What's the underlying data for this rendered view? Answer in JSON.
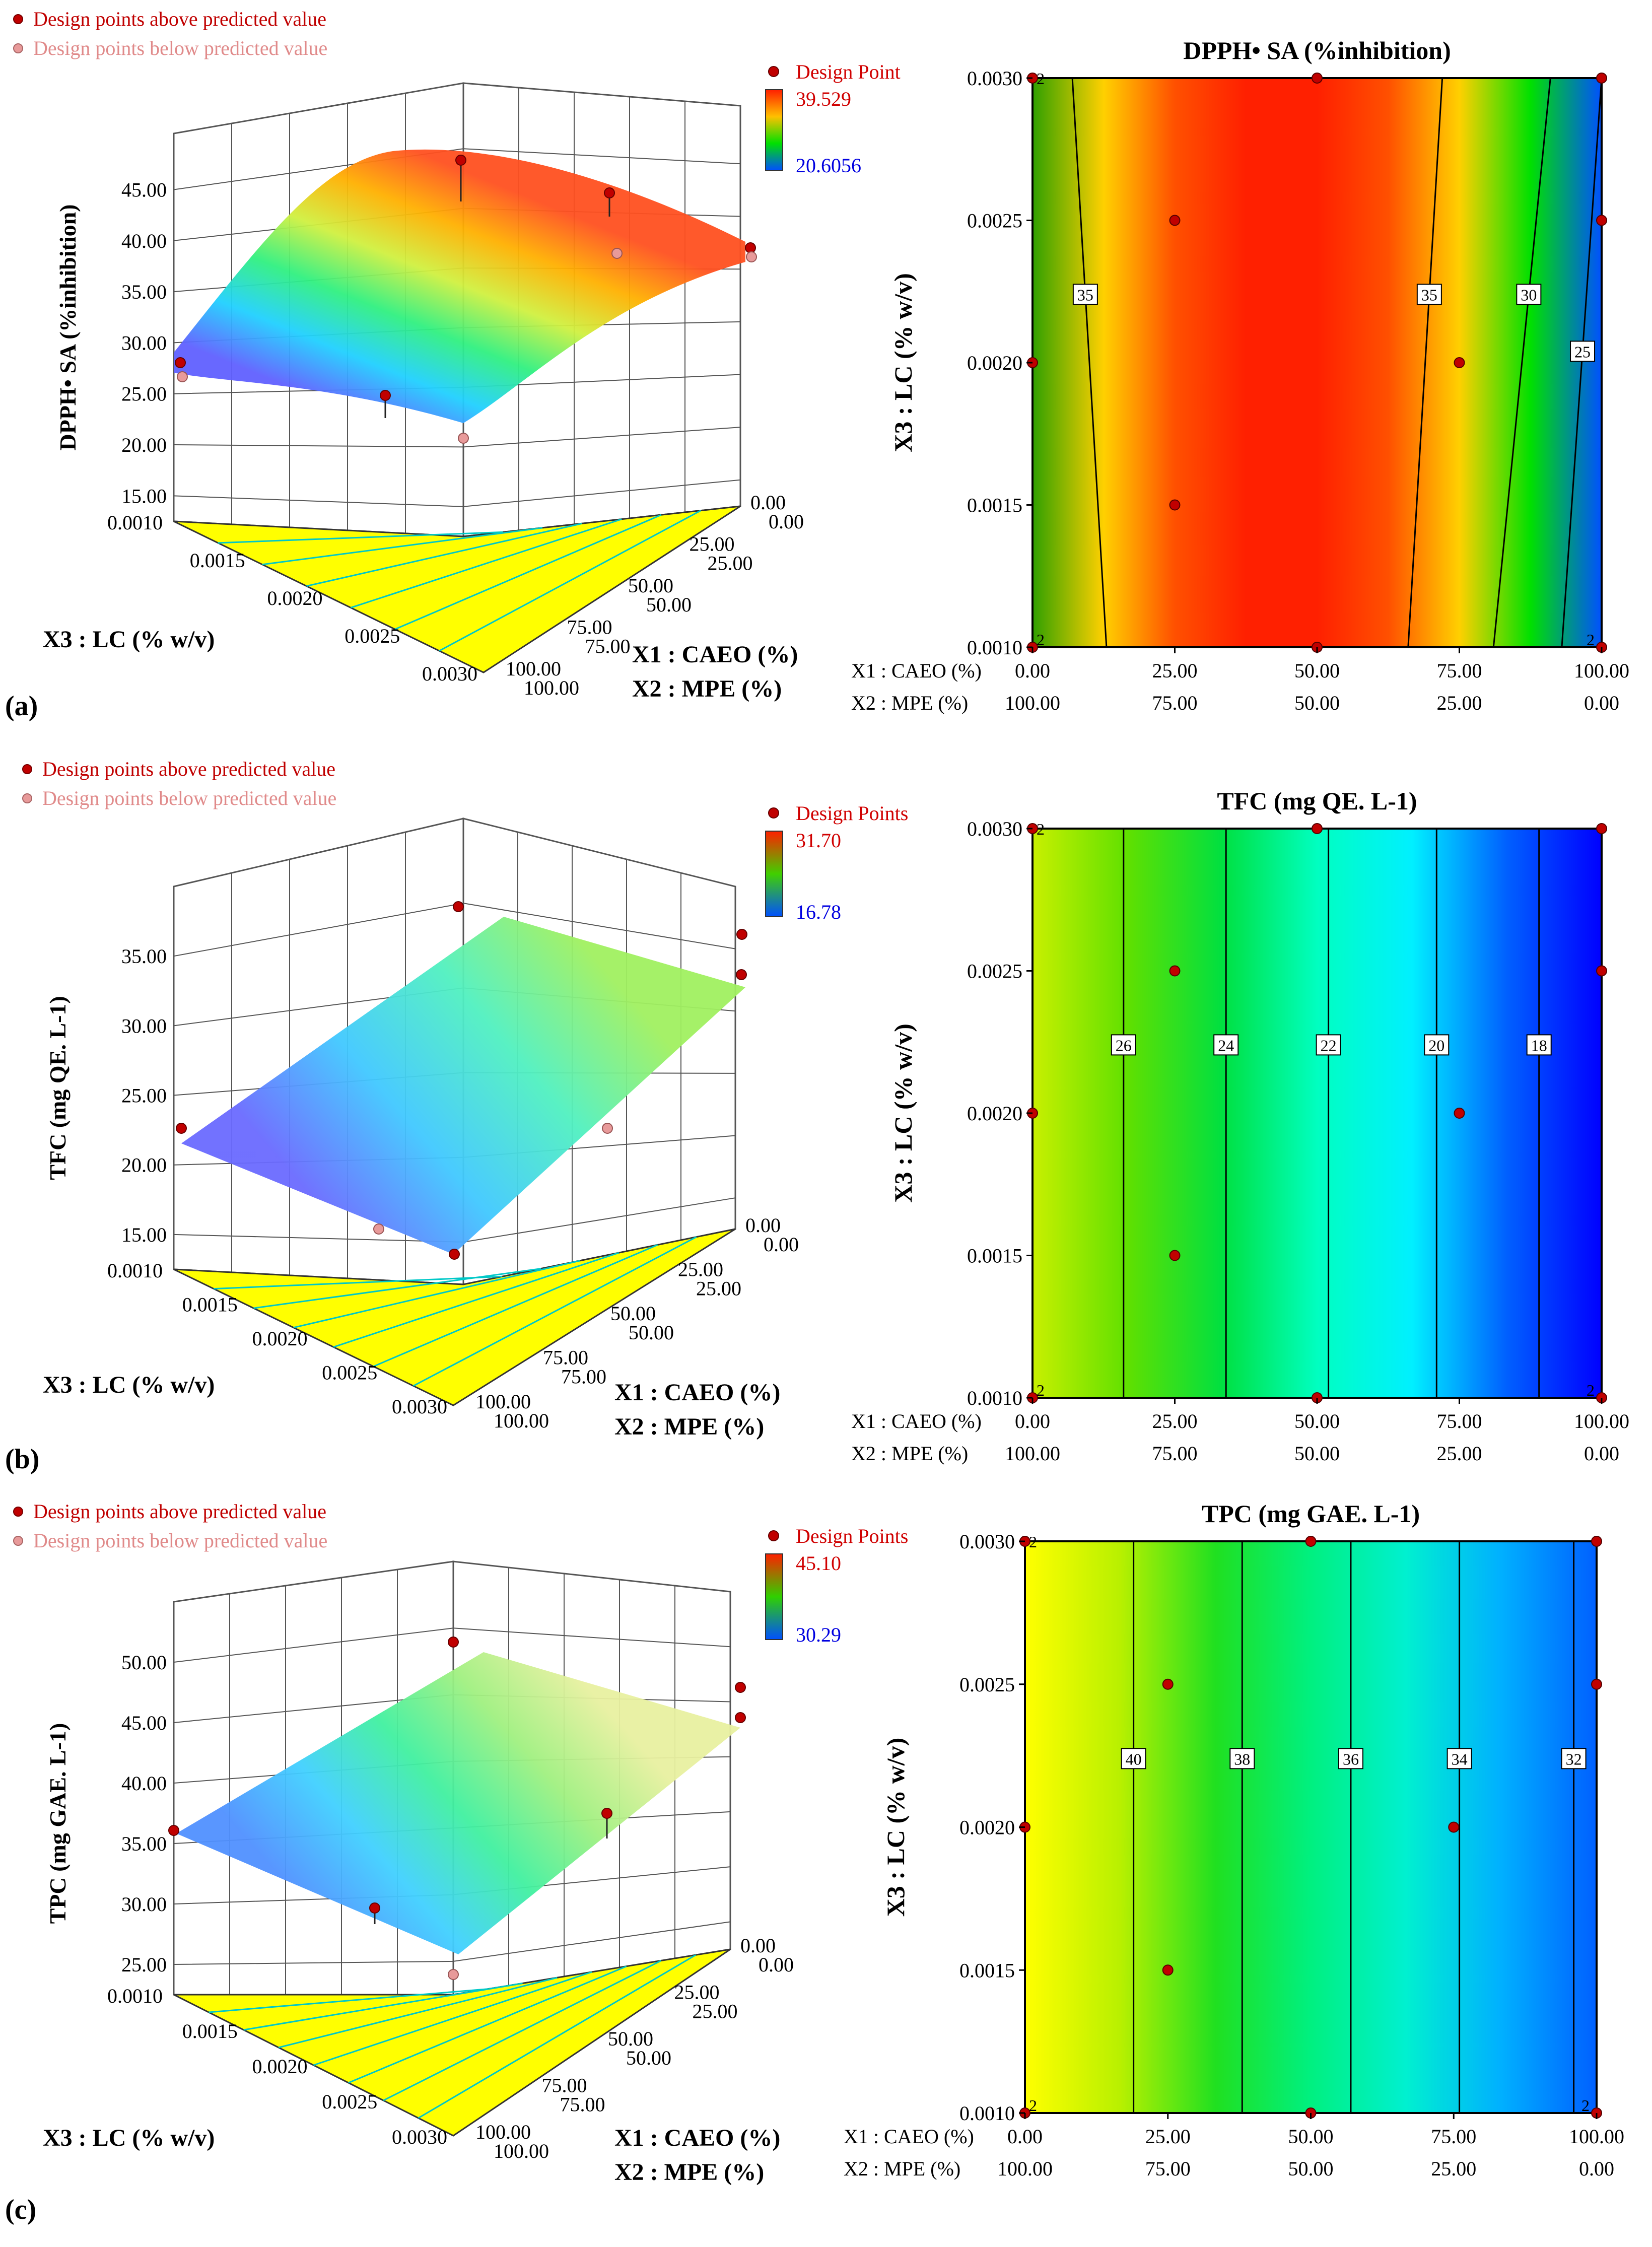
{
  "panel_letters": [
    "(a)",
    "(b)",
    "(c)"
  ],
  "legend": {
    "above": "Design points above predicted value",
    "below": "Design points below predicted value"
  },
  "colors": {
    "design_above": "#c00000",
    "design_below": "#e89a9a",
    "legend_above_text": "#c00000",
    "legend_below_text": "#e08a8a",
    "scale_high_text": "#d00000",
    "scale_low_text": "#0000e0",
    "floor_yellow": "#ffff00",
    "floor_line": "#00c8c8"
  },
  "contour_ramp": [
    "#ffff00",
    "#c8f000",
    "#00e000",
    "#00f0a0",
    "#00ffff",
    "#0090ff",
    "#0000ff"
  ],
  "dpph_ramp": [
    "#30a000",
    "#ffd000",
    "#ff5000",
    "#ff2000",
    "#ff2000",
    "#ff5000",
    "#ffd000",
    "#00e000",
    "#0050ff"
  ],
  "chart_data": [
    {
      "id": "a",
      "type": "surface3d",
      "title": "",
      "zlabel": "DPPH• SA (%inhibition)",
      "zticks": [
        "15.00",
        "20.00",
        "25.00",
        "30.00",
        "35.00",
        "40.00",
        "45.00"
      ],
      "x3label": "X3 : LC (% w/v)",
      "x3ticks": [
        "0.0010",
        "0.0015",
        "0.0020",
        "0.0025",
        "0.0030"
      ],
      "x1label": "X1 : CAEO (%)",
      "x2label": "X2 : MPE (%)",
      "x1ticks": [
        "0.00",
        "25.00",
        "50.00",
        "75.00",
        "100.00"
      ],
      "x2ticks": [
        "100.00",
        "75.00",
        "50.00",
        "25.00",
        "0.00"
      ],
      "scale": {
        "label": "Design Point",
        "high": "39.529",
        "low": "20.6056"
      }
    },
    {
      "id": "a-contour",
      "type": "contour",
      "title": "DPPH• SA (%inhibition)",
      "ylabel": "X3 : LC (% w/v)",
      "yticks": [
        "0.0010",
        "0.0015",
        "0.0020",
        "0.0025",
        "0.0030"
      ],
      "x1caption": "X1 : CAEO (%)",
      "x2caption": "X2 : MPE (%)",
      "x1ticks": [
        "0.00",
        "25.00",
        "50.00",
        "75.00",
        "100.00"
      ],
      "x2ticks": [
        "100.00",
        "75.00",
        "50.00",
        "25.00",
        "0.00"
      ],
      "contour_lines": [
        {
          "label": "35",
          "bottom": 13,
          "top": 7
        },
        {
          "label": "35",
          "bottom": 66,
          "top": 72
        },
        {
          "label": "30",
          "bottom": 81,
          "top": 91
        },
        {
          "label": "25",
          "bottom": 93,
          "top": 100
        }
      ],
      "points": [
        {
          "x": 0,
          "y": 0.003,
          "count": "2"
        },
        {
          "x": 50,
          "y": 0.003
        },
        {
          "x": 100,
          "y": 0.003
        },
        {
          "x": 25,
          "y": 0.0025
        },
        {
          "x": 100,
          "y": 0.0025
        },
        {
          "x": 0,
          "y": 0.002
        },
        {
          "x": 75,
          "y": 0.002
        },
        {
          "x": 25,
          "y": 0.0015
        },
        {
          "x": 0,
          "y": 0.001,
          "count": "2"
        },
        {
          "x": 50,
          "y": 0.001
        },
        {
          "x": 100,
          "y": 0.001,
          "count": "2"
        }
      ]
    },
    {
      "id": "b",
      "type": "surface3d",
      "zlabel": "TFC (mg QE. L-1)",
      "zticks": [
        "15.00",
        "20.00",
        "25.00",
        "30.00",
        "35.00"
      ],
      "x3label": "X3 : LC (% w/v)",
      "x3ticks": [
        "0.0010",
        "0.0015",
        "0.0020",
        "0.0025",
        "0.0030"
      ],
      "x1label": "X1 : CAEO (%)",
      "x2label": "X2 : MPE (%)",
      "x1ticks": [
        "0.00",
        "25.00",
        "50.00",
        "75.00",
        "100.00"
      ],
      "x2ticks": [
        "100.00",
        "75.00",
        "50.00",
        "25.00",
        "0.00"
      ],
      "scale": {
        "label": "Design Points",
        "high": "31.70",
        "low": "16.78"
      }
    },
    {
      "id": "b-contour",
      "type": "contour",
      "title": "TFC (mg QE. L-1)",
      "ylabel": "X3 : LC (% w/v)",
      "yticks": [
        "0.0010",
        "0.0015",
        "0.0020",
        "0.0025",
        "0.0030"
      ],
      "x1caption": "X1 : CAEO (%)",
      "x2caption": "X2 : MPE (%)",
      "x1ticks": [
        "0.00",
        "25.00",
        "50.00",
        "75.00",
        "100.00"
      ],
      "x2ticks": [
        "100.00",
        "75.00",
        "50.00",
        "25.00",
        "0.00"
      ],
      "contour_lines": [
        {
          "label": "26",
          "bottom": 16,
          "top": 16
        },
        {
          "label": "24",
          "bottom": 34,
          "top": 34
        },
        {
          "label": "22",
          "bottom": 52,
          "top": 52
        },
        {
          "label": "20",
          "bottom": 71,
          "top": 71
        },
        {
          "label": "18",
          "bottom": 89,
          "top": 89
        }
      ],
      "points": [
        {
          "x": 0,
          "y": 0.003,
          "count": "2"
        },
        {
          "x": 50,
          "y": 0.003
        },
        {
          "x": 100,
          "y": 0.003
        },
        {
          "x": 25,
          "y": 0.0025
        },
        {
          "x": 100,
          "y": 0.0025
        },
        {
          "x": 0,
          "y": 0.002
        },
        {
          "x": 75,
          "y": 0.002
        },
        {
          "x": 25,
          "y": 0.0015
        },
        {
          "x": 0,
          "y": 0.001,
          "count": "2"
        },
        {
          "x": 50,
          "y": 0.001
        },
        {
          "x": 100,
          "y": 0.001,
          "count": "2"
        }
      ]
    },
    {
      "id": "c",
      "type": "surface3d",
      "zlabel": "TPC (mg GAE. L-1)",
      "zticks": [
        "25.00",
        "30.00",
        "35.00",
        "40.00",
        "45.00",
        "50.00"
      ],
      "x3label": "X3 : LC (% w/v)",
      "x3ticks": [
        "0.0010",
        "0.0015",
        "0.0020",
        "0.0025",
        "0.0030"
      ],
      "x1label": "X1 : CAEO (%)",
      "x2label": "X2 : MPE (%)",
      "x1ticks": [
        "0.00",
        "25.00",
        "50.00",
        "75.00",
        "100.00"
      ],
      "x2ticks": [
        "100.00",
        "75.00",
        "50.00",
        "25.00",
        "0.00"
      ],
      "scale": {
        "label": "Design Points",
        "high": "45.10",
        "low": "30.29"
      }
    },
    {
      "id": "c-contour",
      "type": "contour",
      "title": "TPC (mg GAE. L-1)",
      "ylabel": "X3 : LC (% w/v)",
      "yticks": [
        "0.0010",
        "0.0015",
        "0.0020",
        "0.0025",
        "0.0030"
      ],
      "x1caption": "X1 : CAEO (%)",
      "x2caption": "X2 : MPE (%)",
      "x1ticks": [
        "0.00",
        "25.00",
        "50.00",
        "75.00",
        "100.00"
      ],
      "x2ticks": [
        "100.00",
        "75.00",
        "50.00",
        "25.00",
        "0.00"
      ],
      "contour_lines": [
        {
          "label": "40",
          "bottom": 19,
          "top": 19
        },
        {
          "label": "38",
          "bottom": 38,
          "top": 38
        },
        {
          "label": "36",
          "bottom": 57,
          "top": 57
        },
        {
          "label": "34",
          "bottom": 76,
          "top": 76
        },
        {
          "label": "32",
          "bottom": 96,
          "top": 96
        }
      ],
      "points": [
        {
          "x": 0,
          "y": 0.003,
          "count": "2"
        },
        {
          "x": 50,
          "y": 0.003
        },
        {
          "x": 100,
          "y": 0.003
        },
        {
          "x": 25,
          "y": 0.0025
        },
        {
          "x": 100,
          "y": 0.0025
        },
        {
          "x": 0,
          "y": 0.002
        },
        {
          "x": 75,
          "y": 0.002
        },
        {
          "x": 25,
          "y": 0.0015
        },
        {
          "x": 0,
          "y": 0.001,
          "count": "2"
        },
        {
          "x": 50,
          "y": 0.001
        },
        {
          "x": 100,
          "y": 0.001,
          "count": "2"
        }
      ]
    }
  ]
}
